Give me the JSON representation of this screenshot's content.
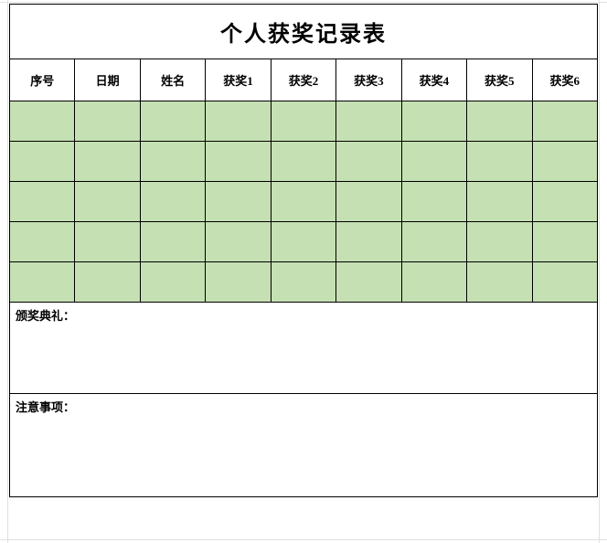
{
  "title": "个人获奖记录表",
  "columns": [
    "序号",
    "日期",
    "姓名",
    "获奖1",
    "获奖2",
    "获奖3",
    "获奖4",
    "获奖5",
    "获奖6"
  ],
  "data_rows": [
    [
      "",
      "",
      "",
      "",
      "",
      "",
      "",
      "",
      ""
    ],
    [
      "",
      "",
      "",
      "",
      "",
      "",
      "",
      "",
      ""
    ],
    [
      "",
      "",
      "",
      "",
      "",
      "",
      "",
      "",
      ""
    ],
    [
      "",
      "",
      "",
      "",
      "",
      "",
      "",
      "",
      ""
    ],
    [
      "",
      "",
      "",
      "",
      "",
      "",
      "",
      "",
      ""
    ]
  ],
  "section1_label": "颁奖典礼：",
  "section1_height": 100,
  "section2_label": "注意事项：",
  "section2_height": 112,
  "styling": {
    "title_fontsize": 24,
    "title_fontweight": "bold",
    "header_fontsize": 13,
    "header_fontweight": "bold",
    "section_fontsize": 13,
    "section_fontweight": "bold",
    "data_cell_bg": "#c5e0b3",
    "header_bg": "#ffffff",
    "title_bg": "#ffffff",
    "section_bg": "#ffffff",
    "border_color": "#000000",
    "sheet_grid_color": "#e0e0e0",
    "column_count": 9,
    "title_row_height": 60,
    "header_row_height": 46,
    "data_row_height": 44
  },
  "grid_background": {
    "v_lines": [
      8,
      655
    ],
    "h_lines": [
      2,
      590
    ]
  }
}
